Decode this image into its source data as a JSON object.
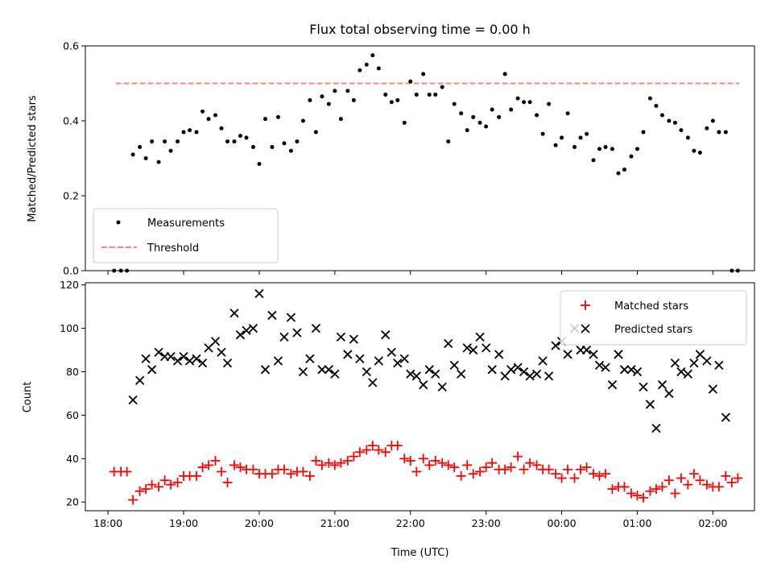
{
  "chart_data": [
    {
      "type": "scatter",
      "title": "Flux total observing time = 0.00 h",
      "ylabel": "Matched/Predicted stars",
      "xlabel": "",
      "xlim": [
        17.7,
        26.55
      ],
      "ylim": [
        0,
        0.6
      ],
      "x_ticks": [
        18,
        19,
        20,
        21,
        22,
        23,
        24,
        25,
        26
      ],
      "y_ticks": [
        0,
        0.2,
        0.4,
        0.6
      ],
      "y_tick_labels": [
        "0.0",
        "0.2",
        "0.4",
        "0.6"
      ],
      "legend_position": "bottom-left",
      "colors": {
        "measurements": "#000000",
        "threshold": "#ff7f7f"
      },
      "threshold": {
        "name": "Threshold",
        "value": 0.5,
        "x_range": [
          18.1,
          26.35
        ]
      },
      "measurements": {
        "name": "Measurements",
        "x": [
          18.08,
          18.17,
          18.25,
          18.33,
          18.42,
          18.5,
          18.58,
          18.67,
          18.75,
          18.83,
          18.92,
          19.0,
          19.08,
          19.17,
          19.25,
          19.33,
          19.42,
          19.5,
          19.58,
          19.67,
          19.75,
          19.83,
          19.92,
          20.0,
          20.08,
          20.17,
          20.25,
          20.33,
          20.42,
          20.5,
          20.58,
          20.67,
          20.75,
          20.83,
          20.92,
          21.0,
          21.08,
          21.17,
          21.25,
          21.33,
          21.42,
          21.5,
          21.58,
          21.67,
          21.75,
          21.83,
          21.92,
          22.0,
          22.08,
          22.17,
          22.25,
          22.33,
          22.42,
          22.5,
          22.58,
          22.67,
          22.75,
          22.83,
          22.92,
          23.0,
          23.08,
          23.17,
          23.25,
          23.33,
          23.42,
          23.5,
          23.58,
          23.67,
          23.75,
          23.83,
          23.92,
          24.0,
          24.08,
          24.17,
          24.25,
          24.33,
          24.42,
          24.5,
          24.58,
          24.67,
          24.75,
          24.83,
          24.92,
          25.0,
          25.08,
          25.17,
          25.25,
          25.33,
          25.42,
          25.5,
          25.58,
          25.67,
          25.75,
          25.83,
          25.92,
          26.0,
          26.08,
          26.17,
          26.25,
          26.33
        ],
        "y": [
          0.0,
          0.0,
          0.0,
          0.31,
          0.33,
          0.3,
          0.345,
          0.29,
          0.345,
          0.32,
          0.345,
          0.37,
          0.375,
          0.37,
          0.425,
          0.405,
          0.415,
          0.38,
          0.345,
          0.345,
          0.36,
          0.355,
          0.33,
          0.285,
          0.405,
          0.33,
          0.41,
          0.34,
          0.32,
          0.345,
          0.4,
          0.455,
          0.37,
          0.465,
          0.445,
          0.48,
          0.405,
          0.48,
          0.455,
          0.535,
          0.55,
          0.575,
          0.54,
          0.47,
          0.45,
          0.455,
          0.395,
          0.505,
          0.47,
          0.525,
          0.47,
          0.47,
          0.49,
          0.345,
          0.445,
          0.42,
          0.375,
          0.41,
          0.395,
          0.385,
          0.43,
          0.41,
          0.525,
          0.43,
          0.46,
          0.45,
          0.45,
          0.415,
          0.365,
          0.445,
          0.335,
          0.355,
          0.42,
          0.33,
          0.355,
          0.365,
          0.295,
          0.325,
          0.33,
          0.325,
          0.26,
          0.27,
          0.305,
          0.325,
          0.37,
          0.46,
          0.44,
          0.415,
          0.4,
          0.395,
          0.375,
          0.355,
          0.32,
          0.315,
          0.38,
          0.4,
          0.37,
          0.37,
          0.0,
          0.0
        ]
      }
    },
    {
      "type": "scatter",
      "title": "",
      "xlabel": "Time (UTC)",
      "ylabel": "Count",
      "xlim": [
        17.7,
        26.55
      ],
      "ylim": [
        16,
        121
      ],
      "x_ticks": [
        18,
        19,
        20,
        21,
        22,
        23,
        24,
        25,
        26
      ],
      "x_tick_labels": [
        "18:00",
        "19:00",
        "20:00",
        "21:00",
        "22:00",
        "23:00",
        "00:00",
        "01:00",
        "02:00"
      ],
      "y_ticks": [
        20,
        40,
        60,
        80,
        100,
        120
      ],
      "y_tick_labels": [
        "20",
        "40",
        "60",
        "80",
        "100",
        "120"
      ],
      "legend_position": "top-right",
      "colors": {
        "matched": "#ff0000",
        "predicted": "#000000"
      },
      "series": [
        {
          "name": "Matched stars",
          "marker": "plus",
          "x": [
            18.08,
            18.17,
            18.25,
            18.33,
            18.42,
            18.5,
            18.58,
            18.67,
            18.75,
            18.83,
            18.92,
            19.0,
            19.08,
            19.17,
            19.25,
            19.33,
            19.42,
            19.5,
            19.58,
            19.67,
            19.75,
            19.83,
            19.92,
            20.0,
            20.08,
            20.17,
            20.25,
            20.33,
            20.42,
            20.5,
            20.58,
            20.67,
            20.75,
            20.83,
            20.92,
            21.0,
            21.08,
            21.17,
            21.25,
            21.33,
            21.42,
            21.5,
            21.58,
            21.67,
            21.75,
            21.83,
            21.92,
            22.0,
            22.08,
            22.17,
            22.25,
            22.33,
            22.42,
            22.5,
            22.58,
            22.67,
            22.75,
            22.83,
            22.92,
            23.0,
            23.08,
            23.17,
            23.25,
            23.33,
            23.42,
            23.5,
            23.58,
            23.67,
            23.75,
            23.83,
            23.92,
            24.0,
            24.08,
            24.17,
            24.25,
            24.33,
            24.42,
            24.5,
            24.58,
            24.67,
            24.75,
            24.83,
            24.92,
            25.0,
            25.08,
            25.17,
            25.25,
            25.33,
            25.42,
            25.5,
            25.58,
            25.67,
            25.75,
            25.83,
            25.92,
            26.0,
            26.08,
            26.17,
            26.25,
            26.33
          ],
          "values": [
            34,
            34,
            34,
            21,
            25,
            26,
            28,
            27,
            30,
            28,
            29,
            32,
            32,
            32,
            36,
            37,
            39,
            34,
            29,
            37,
            36,
            35,
            35,
            33,
            33,
            33,
            35,
            35,
            33,
            34,
            34,
            32,
            39,
            37,
            38,
            37,
            38,
            39,
            41,
            43,
            44,
            46,
            44,
            43,
            46,
            46,
            40,
            39,
            34,
            40,
            37,
            39,
            38,
            37,
            36,
            32,
            37,
            33,
            34,
            36,
            38,
            35,
            35,
            36,
            41,
            35,
            38,
            37,
            35,
            35,
            33,
            31,
            35,
            31,
            35,
            36,
            33,
            32,
            33,
            26,
            27,
            27,
            24,
            23,
            22,
            25,
            26,
            27,
            30,
            24,
            31,
            28,
            33,
            30,
            28,
            27,
            27,
            32,
            29,
            31
          ]
        },
        {
          "name": "Predicted stars",
          "marker": "x",
          "x": [
            18.33,
            18.42,
            18.5,
            18.58,
            18.67,
            18.75,
            18.83,
            18.92,
            19.0,
            19.08,
            19.17,
            19.25,
            19.33,
            19.42,
            19.5,
            19.58,
            19.67,
            19.75,
            19.83,
            19.92,
            20.0,
            20.08,
            20.17,
            20.25,
            20.33,
            20.42,
            20.5,
            20.58,
            20.67,
            20.75,
            20.83,
            20.92,
            21.0,
            21.08,
            21.17,
            21.25,
            21.33,
            21.42,
            21.5,
            21.58,
            21.67,
            21.75,
            21.83,
            21.92,
            22.0,
            22.08,
            22.17,
            22.25,
            22.33,
            22.42,
            22.5,
            22.58,
            22.67,
            22.75,
            22.83,
            22.92,
            23.0,
            23.08,
            23.17,
            23.25,
            23.33,
            23.42,
            23.5,
            23.58,
            23.67,
            23.75,
            23.83,
            23.92,
            24.0,
            24.08,
            24.17,
            24.25,
            24.33,
            24.42,
            24.5,
            24.58,
            24.67,
            24.75,
            24.83,
            24.92,
            25.0,
            25.08,
            25.17,
            25.25,
            25.33,
            25.42,
            25.5,
            25.58,
            25.67,
            25.75,
            25.83,
            25.92,
            26.0,
            26.08,
            26.17
          ],
          "values": [
            67,
            76,
            86,
            81,
            89,
            87,
            87,
            85,
            87,
            85,
            86,
            84,
            91,
            94,
            89,
            84,
            107,
            97,
            99,
            100,
            116,
            81,
            106,
            85,
            96,
            105,
            98,
            80,
            86,
            100,
            81,
            81,
            79,
            96,
            88,
            95,
            86,
            80,
            75,
            85,
            97,
            89,
            84,
            86,
            79,
            78,
            74,
            81,
            79,
            73,
            93,
            83,
            79,
            91,
            90,
            96,
            91,
            81,
            88,
            78,
            81,
            82,
            80,
            78,
            79,
            85,
            78,
            92,
            94,
            88,
            100,
            90,
            90,
            88,
            83,
            82,
            74,
            88,
            81,
            81,
            80,
            73,
            65,
            54,
            74,
            70,
            84,
            80,
            79,
            84,
            88,
            85,
            72,
            83,
            59
          ]
        }
      ]
    }
  ]
}
